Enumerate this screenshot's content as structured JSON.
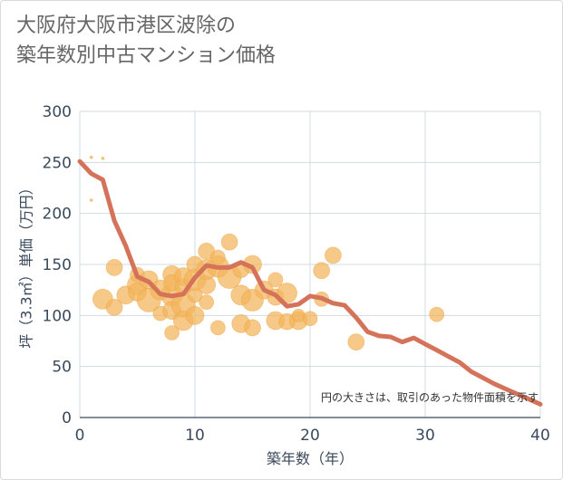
{
  "title_lines": [
    "大阪府大阪市港区波除の",
    "築年数別中古マンション価格"
  ],
  "chart_data": {
    "type": "scatter",
    "title": "大阪府大阪市港区波除の築年数別中古マンション価格",
    "xlabel": "築年数（年）",
    "ylabel": "坪（3.3㎡）単価（万円）",
    "xlim": [
      0,
      40
    ],
    "ylim": [
      0,
      300
    ],
    "xticks": [
      0,
      10,
      20,
      30,
      40
    ],
    "yticks": [
      0,
      50,
      100,
      150,
      200,
      250,
      300
    ],
    "grid": true,
    "note": "円の大きさは、取引のあった物件面積を示す",
    "colors": {
      "bubble": "#f2b45a",
      "line": "#d4735a"
    },
    "bubbles": [
      {
        "x": 1,
        "y": 255,
        "s": 1.5
      },
      {
        "x": 2,
        "y": 254,
        "s": 1.5
      },
      {
        "x": 1,
        "y": 213,
        "s": 1.5
      },
      {
        "x": 2,
        "y": 116,
        "s": 11
      },
      {
        "x": 3,
        "y": 108,
        "s": 9
      },
      {
        "x": 3,
        "y": 147,
        "s": 9
      },
      {
        "x": 4,
        "y": 120,
        "s": 10
      },
      {
        "x": 5,
        "y": 130,
        "s": 11
      },
      {
        "x": 5,
        "y": 123,
        "s": 10
      },
      {
        "x": 5,
        "y": 140,
        "s": 8
      },
      {
        "x": 6,
        "y": 115,
        "s": 13
      },
      {
        "x": 6,
        "y": 135,
        "s": 10
      },
      {
        "x": 7,
        "y": 102,
        "s": 8
      },
      {
        "x": 7,
        "y": 125,
        "s": 11
      },
      {
        "x": 8,
        "y": 140,
        "s": 10
      },
      {
        "x": 8,
        "y": 120,
        "s": 12
      },
      {
        "x": 8,
        "y": 105,
        "s": 10
      },
      {
        "x": 8,
        "y": 83,
        "s": 8
      },
      {
        "x": 8,
        "y": 132,
        "s": 9
      },
      {
        "x": 9,
        "y": 95,
        "s": 11
      },
      {
        "x": 9,
        "y": 110,
        "s": 13
      },
      {
        "x": 9,
        "y": 138,
        "s": 10
      },
      {
        "x": 9,
        "y": 128,
        "s": 9
      },
      {
        "x": 10,
        "y": 100,
        "s": 10
      },
      {
        "x": 10,
        "y": 120,
        "s": 8
      },
      {
        "x": 10,
        "y": 135,
        "s": 12
      },
      {
        "x": 10,
        "y": 150,
        "s": 9
      },
      {
        "x": 11,
        "y": 113,
        "s": 8
      },
      {
        "x": 11,
        "y": 130,
        "s": 10
      },
      {
        "x": 11,
        "y": 163,
        "s": 9
      },
      {
        "x": 11,
        "y": 145,
        "s": 11
      },
      {
        "x": 12,
        "y": 88,
        "s": 8
      },
      {
        "x": 12,
        "y": 148,
        "s": 12
      },
      {
        "x": 12,
        "y": 157,
        "s": 8
      },
      {
        "x": 13,
        "y": 172,
        "s": 9
      },
      {
        "x": 13,
        "y": 138,
        "s": 13
      },
      {
        "x": 14,
        "y": 92,
        "s": 10
      },
      {
        "x": 14,
        "y": 120,
        "s": 11
      },
      {
        "x": 14,
        "y": 145,
        "s": 9
      },
      {
        "x": 15,
        "y": 150,
        "s": 10
      },
      {
        "x": 15,
        "y": 88,
        "s": 9
      },
      {
        "x": 15,
        "y": 115,
        "s": 12
      },
      {
        "x": 16,
        "y": 125,
        "s": 10
      },
      {
        "x": 17,
        "y": 95,
        "s": 10
      },
      {
        "x": 17,
        "y": 135,
        "s": 8
      },
      {
        "x": 17,
        "y": 118,
        "s": 9
      },
      {
        "x": 18,
        "y": 122,
        "s": 11
      },
      {
        "x": 18,
        "y": 94,
        "s": 9
      },
      {
        "x": 19,
        "y": 95,
        "s": 10
      },
      {
        "x": 19,
        "y": 100,
        "s": 7
      },
      {
        "x": 20,
        "y": 97,
        "s": 8
      },
      {
        "x": 21,
        "y": 116,
        "s": 8
      },
      {
        "x": 21,
        "y": 144,
        "s": 9
      },
      {
        "x": 22,
        "y": 159,
        "s": 9
      },
      {
        "x": 24,
        "y": 74,
        "s": 9
      },
      {
        "x": 31,
        "y": 101,
        "s": 8
      }
    ],
    "line": {
      "x": [
        0,
        1,
        2,
        3,
        4,
        5,
        6,
        7,
        8,
        9,
        10,
        11,
        12,
        13,
        14,
        15,
        16,
        17,
        18,
        19,
        20,
        21,
        22,
        23,
        24,
        25,
        26,
        27,
        28,
        29,
        30,
        31,
        32,
        33,
        34,
        35,
        36,
        37,
        38,
        39,
        40
      ],
      "y": [
        251,
        239,
        233,
        193,
        168,
        138,
        133,
        121,
        119,
        121,
        137,
        149,
        147,
        147,
        152,
        147,
        125,
        120,
        109,
        111,
        119,
        117,
        112,
        110,
        98,
        84,
        80,
        79,
        74,
        78,
        72,
        66,
        60,
        54,
        45,
        39,
        33,
        28,
        23,
        18,
        13
      ]
    }
  }
}
